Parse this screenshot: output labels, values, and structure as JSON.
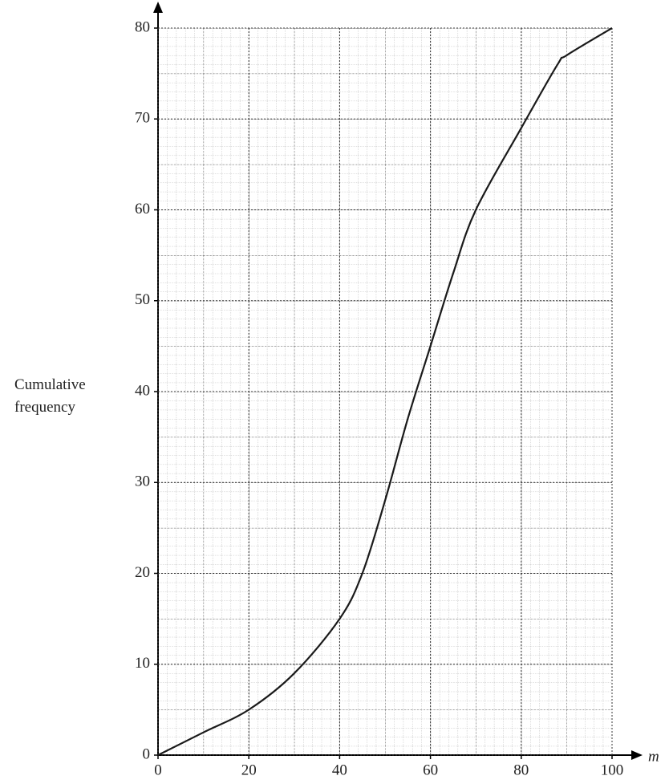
{
  "chart_data": {
    "type": "line",
    "y_label": "Cumulative frequency",
    "x_label": "m",
    "x": [
      0,
      10,
      20,
      30,
      40,
      45,
      50,
      55,
      60,
      65,
      70,
      80,
      88,
      90,
      100
    ],
    "series": [
      {
        "color": "#1a1a1a",
        "values": [
          0,
          2.5,
          5,
          9,
          15,
          20,
          28,
          37,
          45,
          53,
          60,
          69,
          76,
          77,
          80
        ]
      }
    ],
    "xlim": [
      0,
      100
    ],
    "ylim": [
      0,
      80
    ],
    "xticks": [
      0,
      20,
      40,
      60,
      80,
      100
    ],
    "yticks": [
      0,
      10,
      20,
      30,
      40,
      50,
      60,
      70,
      80
    ],
    "grid": true
  }
}
